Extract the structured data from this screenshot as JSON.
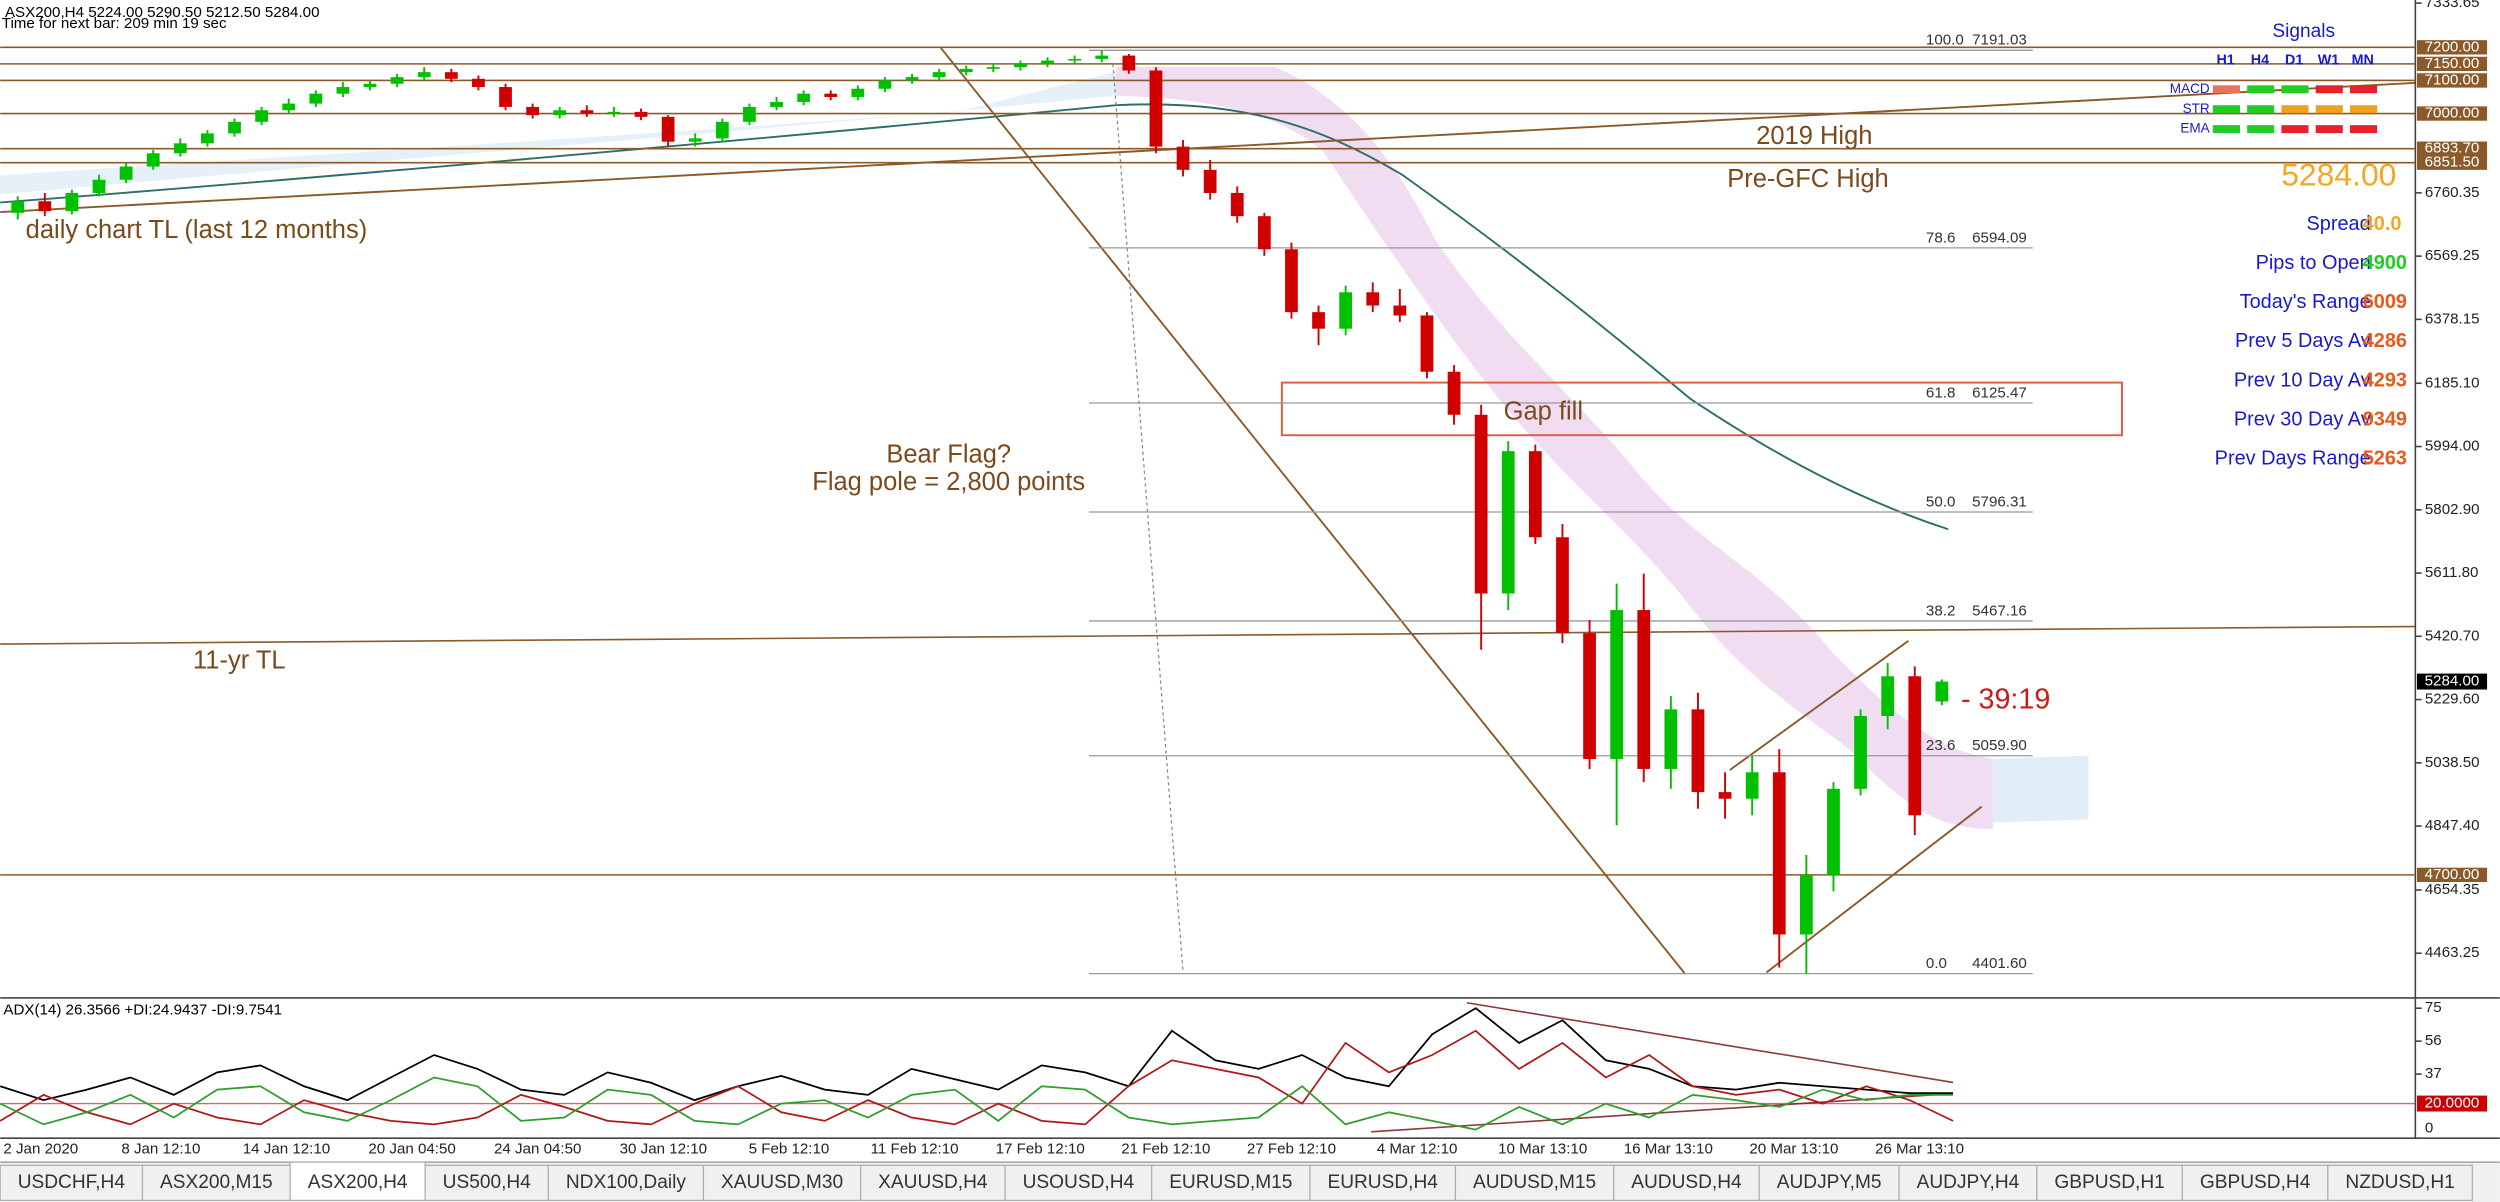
{
  "chart_data": [
    {
      "type": "candlestick",
      "title": "ASX200,H4  5224.00 5290.50 5212.50 5284.00",
      "subtitle": "Time for next bar: 209 min 19 sec",
      "up_color": "#00c000",
      "down_color": "#d00000",
      "level_color": "#8b5a2b",
      "ylim": [
        4333,
        7343
      ],
      "yticks": [
        {
          "value": 7333.65,
          "label": "7333.65"
        },
        {
          "value": 6760.35,
          "label": "6760.35"
        },
        {
          "value": 6569.25,
          "label": "6569.25"
        },
        {
          "value": 6378.15,
          "label": "6378.15"
        },
        {
          "value": 6185.1,
          "label": "6185.10"
        },
        {
          "value": 5994,
          "label": "5994.00"
        },
        {
          "value": 5802.9,
          "label": "5802.90"
        },
        {
          "value": 5611.8,
          "label": "5611.80"
        },
        {
          "value": 5420.7,
          "label": "5420.70"
        },
        {
          "value": 5229.6,
          "label": "5229.60"
        },
        {
          "value": 5038.5,
          "label": "5038.50"
        },
        {
          "value": 4847.4,
          "label": "4847.40"
        },
        {
          "value": 4654.35,
          "label": "4654.35"
        },
        {
          "value": 4463.25,
          "label": "4463.25"
        }
      ],
      "x_labels": [
        "2 Jan 2020",
        "8 Jan 12:10",
        "14 Jan 12:10",
        "20 Jan 04:50",
        "24 Jan 04:50",
        "30 Jan 12:10",
        "5 Feb 12:10",
        "11 Feb 12:10",
        "17 Feb 12:10",
        "21 Feb 12:10",
        "27 Feb 12:10",
        "4 Mar 12:10",
        "10 Mar 13:10",
        "16 Mar 13:10",
        "20 Mar 13:10",
        "26 Mar 13:10"
      ],
      "open": [
        6700,
        6735,
        6705,
        6760,
        6800,
        6840,
        6880,
        6910,
        6940,
        6975,
        7010,
        7030,
        7060,
        7080,
        7090,
        7110,
        7125,
        7105,
        7080,
        7020,
        6995,
        7010,
        7000,
        7005,
        6990,
        6915,
        6925,
        6975,
        7020,
        7035,
        7060,
        7050,
        7075,
        7100,
        7110,
        7125,
        7135,
        7140,
        7150,
        7160,
        7165,
        7175,
        7130,
        6900,
        6830,
        6760,
        6690,
        6590,
        6400,
        6350,
        6460,
        6420,
        6390,
        6220,
        6090,
        5550,
        5980,
        5720,
        5430,
        5050,
        5500,
        5020,
        5200,
        4950,
        4930,
        5010,
        4520,
        4700,
        4960,
        5180,
        5300,
        5224
      ],
      "high": [
        6750,
        6760,
        6770,
        6815,
        6850,
        6890,
        6925,
        6950,
        6985,
        7020,
        7045,
        7070,
        7095,
        7100,
        7120,
        7140,
        7135,
        7115,
        7090,
        7030,
        7020,
        7025,
        7020,
        7015,
        6995,
        6940,
        6985,
        7030,
        7050,
        7070,
        7070,
        7085,
        7110,
        7120,
        7135,
        7145,
        7150,
        7160,
        7170,
        7175,
        7191,
        7180,
        7140,
        6920,
        6860,
        6780,
        6700,
        6610,
        6420,
        6480,
        6490,
        6470,
        6400,
        6240,
        6120,
        6010,
        6000,
        5760,
        5470,
        5580,
        5610,
        5240,
        5250,
        5010,
        5060,
        5080,
        4760,
        4980,
        5200,
        5340,
        5330,
        5290.5
      ],
      "low": [
        6680,
        6690,
        6695,
        6750,
        6790,
        6830,
        6870,
        6900,
        6930,
        6965,
        7000,
        7020,
        7050,
        7070,
        7080,
        7100,
        7095,
        7070,
        7010,
        6985,
        6985,
        6990,
        6990,
        6980,
        6900,
        6900,
        6915,
        6965,
        7010,
        7025,
        7040,
        7040,
        7065,
        7090,
        7100,
        7115,
        7125,
        7130,
        7140,
        7150,
        7155,
        7120,
        6880,
        6810,
        6740,
        6670,
        6570,
        6380,
        6300,
        6330,
        6400,
        6370,
        6200,
        6060,
        5380,
        5500,
        5700,
        5400,
        5020,
        4850,
        4980,
        4960,
        4900,
        4870,
        4880,
        4420,
        4401.6,
        4650,
        4940,
        5140,
        4820,
        5212.5
      ],
      "close": [
        6735,
        6705,
        6760,
        6800,
        6840,
        6880,
        6910,
        6940,
        6975,
        7010,
        7030,
        7060,
        7080,
        7090,
        7110,
        7125,
        7105,
        7080,
        7020,
        6995,
        7010,
        7000,
        7005,
        6990,
        6915,
        6925,
        6975,
        7020,
        7035,
        7060,
        7050,
        7075,
        7100,
        7110,
        7125,
        7135,
        7140,
        7150,
        7160,
        7165,
        7175,
        7130,
        6900,
        6830,
        6760,
        6690,
        6590,
        6400,
        6350,
        6460,
        6420,
        6390,
        6220,
        6090,
        5550,
        5980,
        5720,
        5430,
        5050,
        5500,
        5020,
        5200,
        4950,
        4930,
        5010,
        4520,
        4700,
        4960,
        5180,
        5300,
        4880,
        5284
      ],
      "levels": [
        {
          "value": 7200,
          "label": "7200.00"
        },
        {
          "value": 7150,
          "label": "7150.00"
        },
        {
          "value": 7100,
          "label": "7100.00"
        },
        {
          "value": 7000,
          "label": "7000.00"
        },
        {
          "value": 6893.7,
          "label": "6893.70"
        },
        {
          "value": 6851.5,
          "label": "6851.50"
        },
        {
          "value": 4700,
          "label": "4700.00"
        }
      ],
      "current_price": {
        "value": 5284,
        "label": "5284.00"
      },
      "fib_levels": [
        {
          "level": "100.0",
          "value": 7191.03,
          "label": "7191.03"
        },
        {
          "level": "78.6",
          "value": 6594.09,
          "label": "6594.09"
        },
        {
          "level": "61.8",
          "value": 6125.47,
          "label": "6125.47"
        },
        {
          "level": "50.0",
          "value": 5796.31,
          "label": "5796.31"
        },
        {
          "level": "38.2",
          "value": 5467.16,
          "label": "5467.16"
        },
        {
          "level": "23.6",
          "value": 5059.9,
          "label": "5059.90"
        },
        {
          "level": "0.0",
          "value": 4401.6,
          "label": "4401.60"
        }
      ],
      "annotations": [
        "daily chart TL (last 12 months)",
        "2019 High",
        "Pre-GFC High",
        "Gap fill",
        "Bear Flag?",
        "Flag pole = 2,800 points",
        "11-yr TL"
      ],
      "countdown": "- 39:19"
    },
    {
      "type": "line",
      "title": "ADX(14) 26.3566 +DI:24.9437 -DI:9.7541",
      "ylim": [
        0,
        80
      ],
      "yticks": [
        75,
        56,
        37,
        0
      ],
      "level": {
        "value": 20,
        "label": "20.0000",
        "color": "#cc0000"
      },
      "series": [
        {
          "color": "#000000",
          "values": [
            30,
            22,
            28,
            35,
            25,
            38,
            42,
            30,
            22,
            35,
            48,
            40,
            28,
            25,
            38,
            32,
            22,
            30,
            36,
            28,
            25,
            40,
            34,
            28,
            42,
            38,
            30,
            62,
            45,
            40,
            48,
            35,
            30,
            60,
            75,
            55,
            68,
            45,
            40,
            30,
            28,
            32,
            30,
            28,
            26,
            26
          ]
        },
        {
          "color": "#b01818",
          "values": [
            10,
            25,
            15,
            8,
            20,
            12,
            8,
            22,
            15,
            10,
            8,
            12,
            25,
            18,
            10,
            8,
            20,
            30,
            15,
            10,
            22,
            12,
            8,
            20,
            10,
            8,
            30,
            45,
            40,
            35,
            20,
            55,
            38,
            48,
            62,
            40,
            55,
            35,
            48,
            30,
            25,
            28,
            20,
            30,
            22,
            10
          ]
        },
        {
          "color": "#2e9e2e",
          "values": [
            20,
            8,
            15,
            25,
            12,
            28,
            30,
            15,
            10,
            22,
            35,
            30,
            10,
            12,
            28,
            25,
            10,
            8,
            20,
            22,
            12,
            25,
            28,
            10,
            30,
            28,
            12,
            8,
            10,
            12,
            30,
            8,
            15,
            10,
            5,
            18,
            8,
            20,
            12,
            25,
            22,
            18,
            28,
            22,
            25,
            25
          ]
        }
      ]
    }
  ],
  "signals": {
    "title": "Signals",
    "columns": [
      "H1",
      "H4",
      "D1",
      "W1",
      "MN"
    ],
    "rows": [
      {
        "label": "MACD",
        "colors": [
          "#e8735a",
          "#22cc22",
          "#22cc22",
          "#e8202a",
          "#e8202a"
        ]
      },
      {
        "label": "STR",
        "colors": [
          "#22cc22",
          "#22cc22",
          "#f0a020",
          "#f0a020",
          "#f0a020"
        ]
      },
      {
        "label": "EMA",
        "colors": [
          "#22cc22",
          "#22cc22",
          "#e8202a",
          "#e8202a",
          "#e8202a"
        ]
      }
    ]
  },
  "stats": {
    "price": "5284.00",
    "price_color": "#f5a623",
    "rows": [
      {
        "label": "Spread",
        "value": "40.0",
        "color": "#f5a623"
      },
      {
        "label": "Pips to Open",
        "value": "4900",
        "color": "#22cc22"
      },
      {
        "label": "Today's Range",
        "value": "6009",
        "color": "#e85a1a"
      },
      {
        "label": "Prev 5 Days Av",
        "value": "4286",
        "color": "#e85a1a"
      },
      {
        "label": "Prev 10 Day Av",
        "value": "4293",
        "color": "#e85a1a"
      },
      {
        "label": "Prev 30 Day Av",
        "value": "9349",
        "color": "#e85a1a"
      },
      {
        "label": "Prev Days Range",
        "value": "5263",
        "color": "#e85a1a"
      }
    ]
  },
  "tabs": {
    "items": [
      "USDCHF,H4",
      "ASX200,M15",
      "ASX200,H4",
      "US500,H4",
      "NDX100,Daily",
      "XAUUSD,M30",
      "XAUUSD,H4",
      "USOUSD,H4",
      "EURUSD,M15",
      "EURUSD,H4",
      "AUDUSD,M15",
      "AUDUSD,H4",
      "AUDJPY,M5",
      "AUDJPY,H4",
      "GBPUSD,H1",
      "GBPUSD,H4",
      "NZDUSD,H1"
    ],
    "active": 2
  }
}
